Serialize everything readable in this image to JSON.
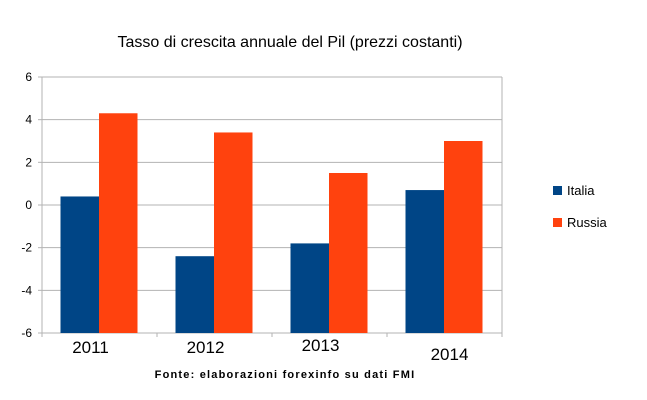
{
  "chart_data": {
    "type": "bar",
    "title": "Tasso di crescita annuale del Pil (prezzi costanti)",
    "categories": [
      "2011",
      "2012",
      "2013",
      "2014"
    ],
    "series": [
      {
        "name": "Italia",
        "color": "#004586",
        "values": [
          0.4,
          -2.4,
          -1.8,
          0.7
        ]
      },
      {
        "name": "Russia",
        "color": "#ff420e",
        "values": [
          4.3,
          3.4,
          1.5,
          3.0
        ]
      }
    ],
    "ylim": [
      -6,
      6
    ],
    "yticks": [
      "6",
      "4",
      "2",
      "0",
      "-2",
      "-4",
      "-6"
    ],
    "grid": true,
    "legend_position": "right",
    "xlabel": "",
    "ylabel": "",
    "source": "Fonte: elaborazioni forexinfo su dati FMI"
  }
}
